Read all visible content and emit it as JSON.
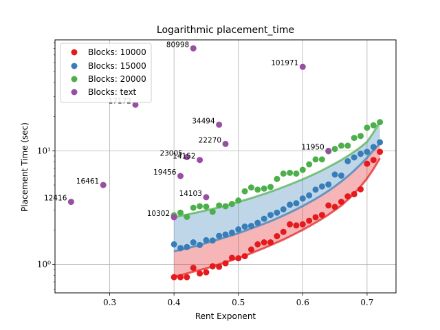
{
  "chart_data": {
    "type": "scatter",
    "title": "Logarithmic placement_time",
    "xlabel": "Rent Exponent",
    "ylabel": "Placement Time (sec)",
    "xlim": [
      0.215,
      0.745
    ],
    "ylim": [
      0.56,
      95
    ],
    "yscale": "log",
    "grid": true,
    "legend_position": "top-left",
    "x_ticks": [
      0.3,
      0.4,
      0.5,
      0.6,
      0.7
    ],
    "x_tick_labels": [
      "0.3",
      "0.4",
      "0.5",
      "0.6",
      "0.7"
    ],
    "y_ticks": [
      1,
      10
    ],
    "y_tick_labels": [
      "10⁰",
      "10¹"
    ],
    "series": [
      {
        "name": "Blocks: 10000",
        "color": "#e41a1c",
        "x": [
          0.4,
          0.41,
          0.42,
          0.43,
          0.44,
          0.45,
          0.46,
          0.47,
          0.48,
          0.49,
          0.5,
          0.51,
          0.52,
          0.53,
          0.54,
          0.55,
          0.56,
          0.57,
          0.58,
          0.59,
          0.6,
          0.61,
          0.62,
          0.63,
          0.64,
          0.65,
          0.66,
          0.67,
          0.68,
          0.69,
          0.7,
          0.71,
          0.72
        ],
        "y": [
          0.77,
          0.77,
          0.77,
          0.93,
          0.83,
          0.85,
          0.96,
          0.95,
          1.02,
          1.14,
          1.13,
          1.18,
          1.35,
          1.5,
          1.56,
          1.56,
          1.77,
          1.93,
          2.25,
          2.2,
          2.25,
          2.42,
          2.6,
          2.72,
          3.3,
          3.2,
          3.55,
          3.97,
          4.15,
          4.58,
          7.7,
          8.3,
          9.8
        ],
        "fit": [
          0.78,
          0.8,
          0.83,
          0.86,
          0.89,
          0.92,
          0.96,
          1.0,
          1.04,
          1.09,
          1.14,
          1.19,
          1.25,
          1.32,
          1.39,
          1.47,
          1.56,
          1.65,
          1.76,
          1.88,
          2.01,
          2.16,
          2.33,
          2.52,
          2.73,
          3.0,
          3.3,
          3.7,
          4.2,
          4.85,
          5.7,
          6.9,
          8.6
        ]
      },
      {
        "name": "Blocks: 15000",
        "color": "#377eb8",
        "x": [
          0.4,
          0.41,
          0.42,
          0.43,
          0.44,
          0.45,
          0.46,
          0.47,
          0.48,
          0.49,
          0.5,
          0.51,
          0.52,
          0.53,
          0.54,
          0.55,
          0.56,
          0.57,
          0.58,
          0.59,
          0.6,
          0.61,
          0.62,
          0.63,
          0.64,
          0.65,
          0.66,
          0.67,
          0.68,
          0.69,
          0.7,
          0.71,
          0.72
        ],
        "y": [
          1.5,
          1.39,
          1.42,
          1.56,
          1.48,
          1.63,
          1.62,
          1.78,
          1.83,
          1.9,
          2.03,
          2.15,
          2.18,
          2.32,
          2.52,
          2.72,
          2.85,
          3.05,
          3.35,
          3.45,
          3.8,
          4.05,
          4.55,
          4.85,
          5.05,
          6.18,
          6.05,
          8.1,
          8.75,
          9.4,
          9.8,
          10.8,
          11.9
        ],
        "fit": [
          1.3,
          1.34,
          1.38,
          1.43,
          1.48,
          1.54,
          1.6,
          1.66,
          1.73,
          1.8,
          1.88,
          1.97,
          2.07,
          2.17,
          2.28,
          2.4,
          2.54,
          2.69,
          2.86,
          3.05,
          3.26,
          3.5,
          3.77,
          4.08,
          4.44,
          4.87,
          5.37,
          5.97,
          6.7,
          7.6,
          8.7,
          10.1,
          11.6
        ]
      },
      {
        "name": "Blocks: 20000",
        "color": "#4daf4a",
        "x": [
          0.4,
          0.41,
          0.42,
          0.43,
          0.44,
          0.45,
          0.46,
          0.47,
          0.48,
          0.49,
          0.5,
          0.51,
          0.52,
          0.53,
          0.54,
          0.55,
          0.56,
          0.57,
          0.58,
          0.59,
          0.6,
          0.61,
          0.62,
          0.63,
          0.64,
          0.65,
          0.66,
          0.67,
          0.68,
          0.69,
          0.7,
          0.71,
          0.72
        ],
        "y": [
          2.7,
          2.85,
          2.62,
          3.15,
          3.25,
          3.22,
          2.9,
          3.3,
          3.25,
          3.4,
          3.65,
          4.4,
          4.75,
          4.55,
          4.65,
          4.8,
          5.65,
          6.3,
          6.4,
          6.3,
          6.8,
          7.6,
          8.4,
          8.4,
          9.9,
          10.4,
          11.1,
          11.1,
          13.0,
          13.5,
          16.0,
          16.8,
          17.9
        ],
        "fit": [
          2.6,
          2.67,
          2.74,
          2.82,
          2.9,
          2.99,
          3.08,
          3.18,
          3.29,
          3.41,
          3.54,
          3.68,
          3.83,
          3.99,
          4.17,
          4.36,
          4.57,
          4.8,
          5.05,
          5.32,
          5.62,
          5.95,
          6.32,
          6.73,
          7.2,
          7.72,
          8.3,
          9.0,
          9.8,
          10.8,
          12.0,
          14.5,
          18.0
        ]
      },
      {
        "name": "Blocks: text",
        "color": "#984ea3",
        "points": [
          {
            "x": 0.24,
            "y": 3.55,
            "label": "12416"
          },
          {
            "x": 0.29,
            "y": 5.0,
            "label": "16461"
          },
          {
            "x": 0.34,
            "y": 25.5,
            "label": "17172"
          },
          {
            "x": 0.4,
            "y": 2.6,
            "label": "10302"
          },
          {
            "x": 0.41,
            "y": 6.0,
            "label": "19456"
          },
          {
            "x": 0.42,
            "y": 8.8,
            "label": "23005"
          },
          {
            "x": 0.43,
            "y": 80.0,
            "label": "80998"
          },
          {
            "x": 0.44,
            "y": 8.3,
            "label": "14152"
          },
          {
            "x": 0.45,
            "y": 3.9,
            "label": "14103"
          },
          {
            "x": 0.47,
            "y": 17.0,
            "label": "34494"
          },
          {
            "x": 0.48,
            "y": 11.5,
            "label": "22270"
          },
          {
            "x": 0.6,
            "y": 55.0,
            "label": "101971"
          },
          {
            "x": 0.64,
            "y": 10.0,
            "label": "11950"
          }
        ]
      }
    ]
  },
  "legend": {
    "items": [
      {
        "label": "Blocks: 10000",
        "color": "#e41a1c"
      },
      {
        "label": "Blocks: 15000",
        "color": "#377eb8"
      },
      {
        "label": "Blocks: 20000",
        "color": "#4daf4a"
      },
      {
        "label": "Blocks: text",
        "color": "#984ea3"
      }
    ]
  }
}
